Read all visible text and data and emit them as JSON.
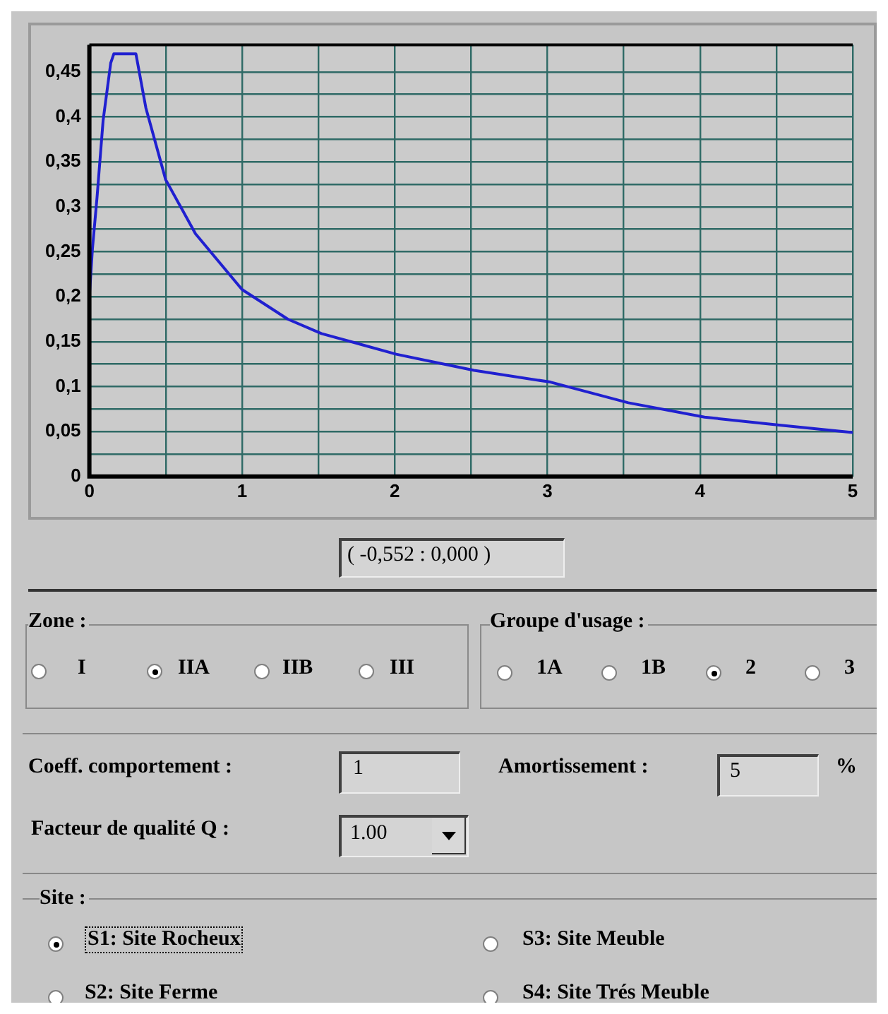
{
  "chart_data": {
    "type": "line",
    "x": [
      0,
      0.02,
      0.05,
      0.09,
      0.14,
      0.16,
      0.305,
      0.37,
      0.5,
      0.695,
      1,
      1.3,
      1.52,
      2.01,
      2.52,
      3.02,
      3.53,
      4.03,
      4.53,
      5
    ],
    "series": [
      {
        "color": "#2020d0",
        "values": [
          0.2,
          0.253,
          0.31,
          0.396,
          0.46,
          0.47,
          0.47,
          0.41,
          0.33,
          0.27,
          0.208,
          0.175,
          0.159,
          0.136,
          0.118,
          0.105,
          0.082,
          0.066,
          0.057,
          0.049
        ]
      }
    ],
    "xlim": [
      0,
      5
    ],
    "xticks": [
      0,
      {
        "value": 0.5,
        "label": null
      },
      1,
      {
        "value": 1.5,
        "label": null
      },
      2,
      {
        "value": 2.5,
        "label": null
      },
      3,
      {
        "value": 3.5,
        "label": null
      },
      4,
      {
        "value": 4.5,
        "label": null
      },
      5
    ],
    "ylim": [
      0,
      0.48
    ],
    "yticks": [
      {
        "value": 0,
        "label": "0"
      },
      {
        "value": 0.025,
        "label": null
      },
      {
        "value": 0.05,
        "label": "0,05"
      },
      {
        "value": 0.075,
        "label": null
      },
      {
        "value": 0.1,
        "label": "0,1"
      },
      {
        "value": 0.125,
        "label": null
      },
      {
        "value": 0.15,
        "label": "0,15"
      },
      {
        "value": 0.175,
        "label": null
      },
      {
        "value": 0.2,
        "label": "0,2"
      },
      {
        "value": 0.225,
        "label": null
      },
      {
        "value": 0.25,
        "label": "0,25"
      },
      {
        "value": 0.275,
        "label": null
      },
      {
        "value": 0.3,
        "label": "0,3"
      },
      {
        "value": 0.325,
        "label": null
      },
      {
        "value": 0.35,
        "label": "0,35"
      },
      {
        "value": 0.375,
        "label": null
      },
      {
        "value": 0.4,
        "label": "0,4"
      },
      {
        "value": 0.425,
        "label": null
      },
      {
        "value": 0.45,
        "label": "0,45"
      }
    ],
    "grid": true,
    "marker": "none",
    "line_style": "solid",
    "annotations": [
      "( -0,552 : 0,000 )",
      "Zone :",
      "I",
      "IIA",
      "IIB",
      "III",
      "Groupe d'usage :",
      "1A",
      "1B",
      "2",
      "3",
      "Coeff. comportement :",
      "1",
      "Amortissement :",
      "5",
      "%",
      "Facteur de qualité Q :",
      "1.00",
      "Site :",
      "S1: Site Rocheux",
      "S3: Site Meuble",
      "S2: Site Ferme",
      "S4: Site Trés Meuble"
    ]
  }
}
